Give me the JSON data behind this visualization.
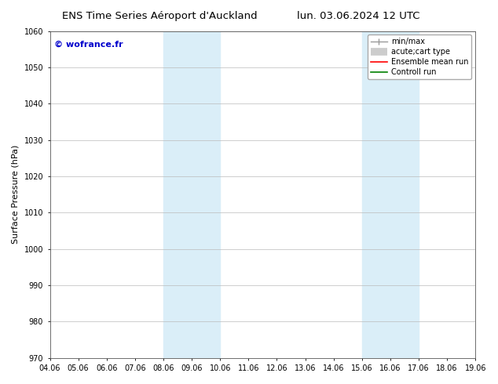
{
  "title_left": "ENS Time Series Aéroport d'Auckland",
  "title_right": "lun. 03.06.2024 12 UTC",
  "ylabel": "Surface Pressure (hPa)",
  "watermark": "© wofrance.fr",
  "watermark_color": "#0000cc",
  "xtick_labels": [
    "04.06",
    "05.06",
    "06.06",
    "07.06",
    "08.06",
    "09.06",
    "10.06",
    "11.06",
    "12.06",
    "13.06",
    "14.06",
    "15.06",
    "16.06",
    "17.06",
    "18.06",
    "19.06"
  ],
  "ylim": [
    970,
    1060
  ],
  "ytick_step": 10,
  "background_color": "#ffffff",
  "plot_bg_color": "#ffffff",
  "shaded_regions": [
    {
      "xstart": 4,
      "xend": 6,
      "color": "#daeef8"
    },
    {
      "xstart": 11,
      "xend": 13,
      "color": "#daeef8"
    }
  ],
  "grid_color": "#bbbbbb",
  "title_fontsize": 9.5,
  "tick_fontsize": 7,
  "ylabel_fontsize": 8
}
